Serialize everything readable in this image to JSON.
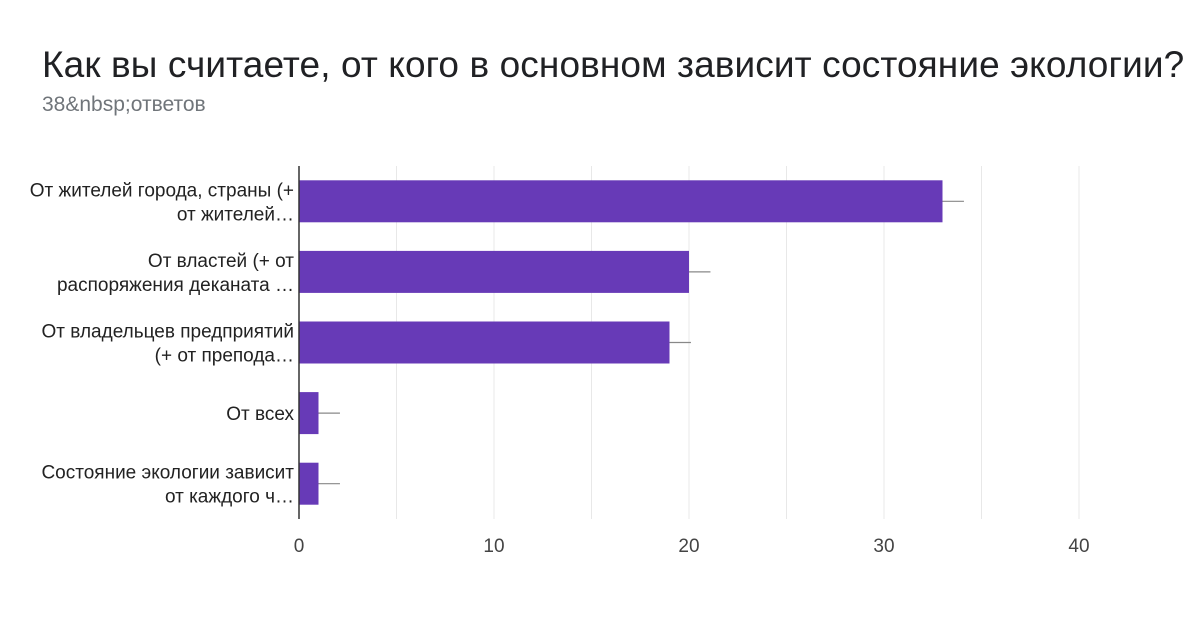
{
  "title": "Как вы считаете, от кого в основном зависит состояние экологии?",
  "subtitle": "38&nbsp;ответов",
  "colors": {
    "bar": "#673ab7",
    "grid": "#e8e8e8",
    "axis": "#333333",
    "error": "#888888"
  },
  "chart_data": {
    "type": "bar",
    "orientation": "horizontal",
    "categories": [
      [
        "От жителей города, страны (+",
        "от жителей…"
      ],
      [
        "От властей (+ от",
        "распоряжения деканата …"
      ],
      [
        "От владельцев предприятий",
        "(+ от препода…"
      ],
      [
        "От всех"
      ],
      [
        "Состояние экологии зависит",
        "от каждого ч…"
      ]
    ],
    "values": [
      33,
      20,
      19,
      1,
      1
    ],
    "error_bars": [
      1.1,
      1.1,
      1.1,
      1.1,
      1.1
    ],
    "xlim": [
      0,
      40
    ],
    "xticks": [
      "0",
      "10",
      "20",
      "30",
      "40"
    ],
    "minor_grid_step": 5,
    "grid": true,
    "legend": "none"
  }
}
